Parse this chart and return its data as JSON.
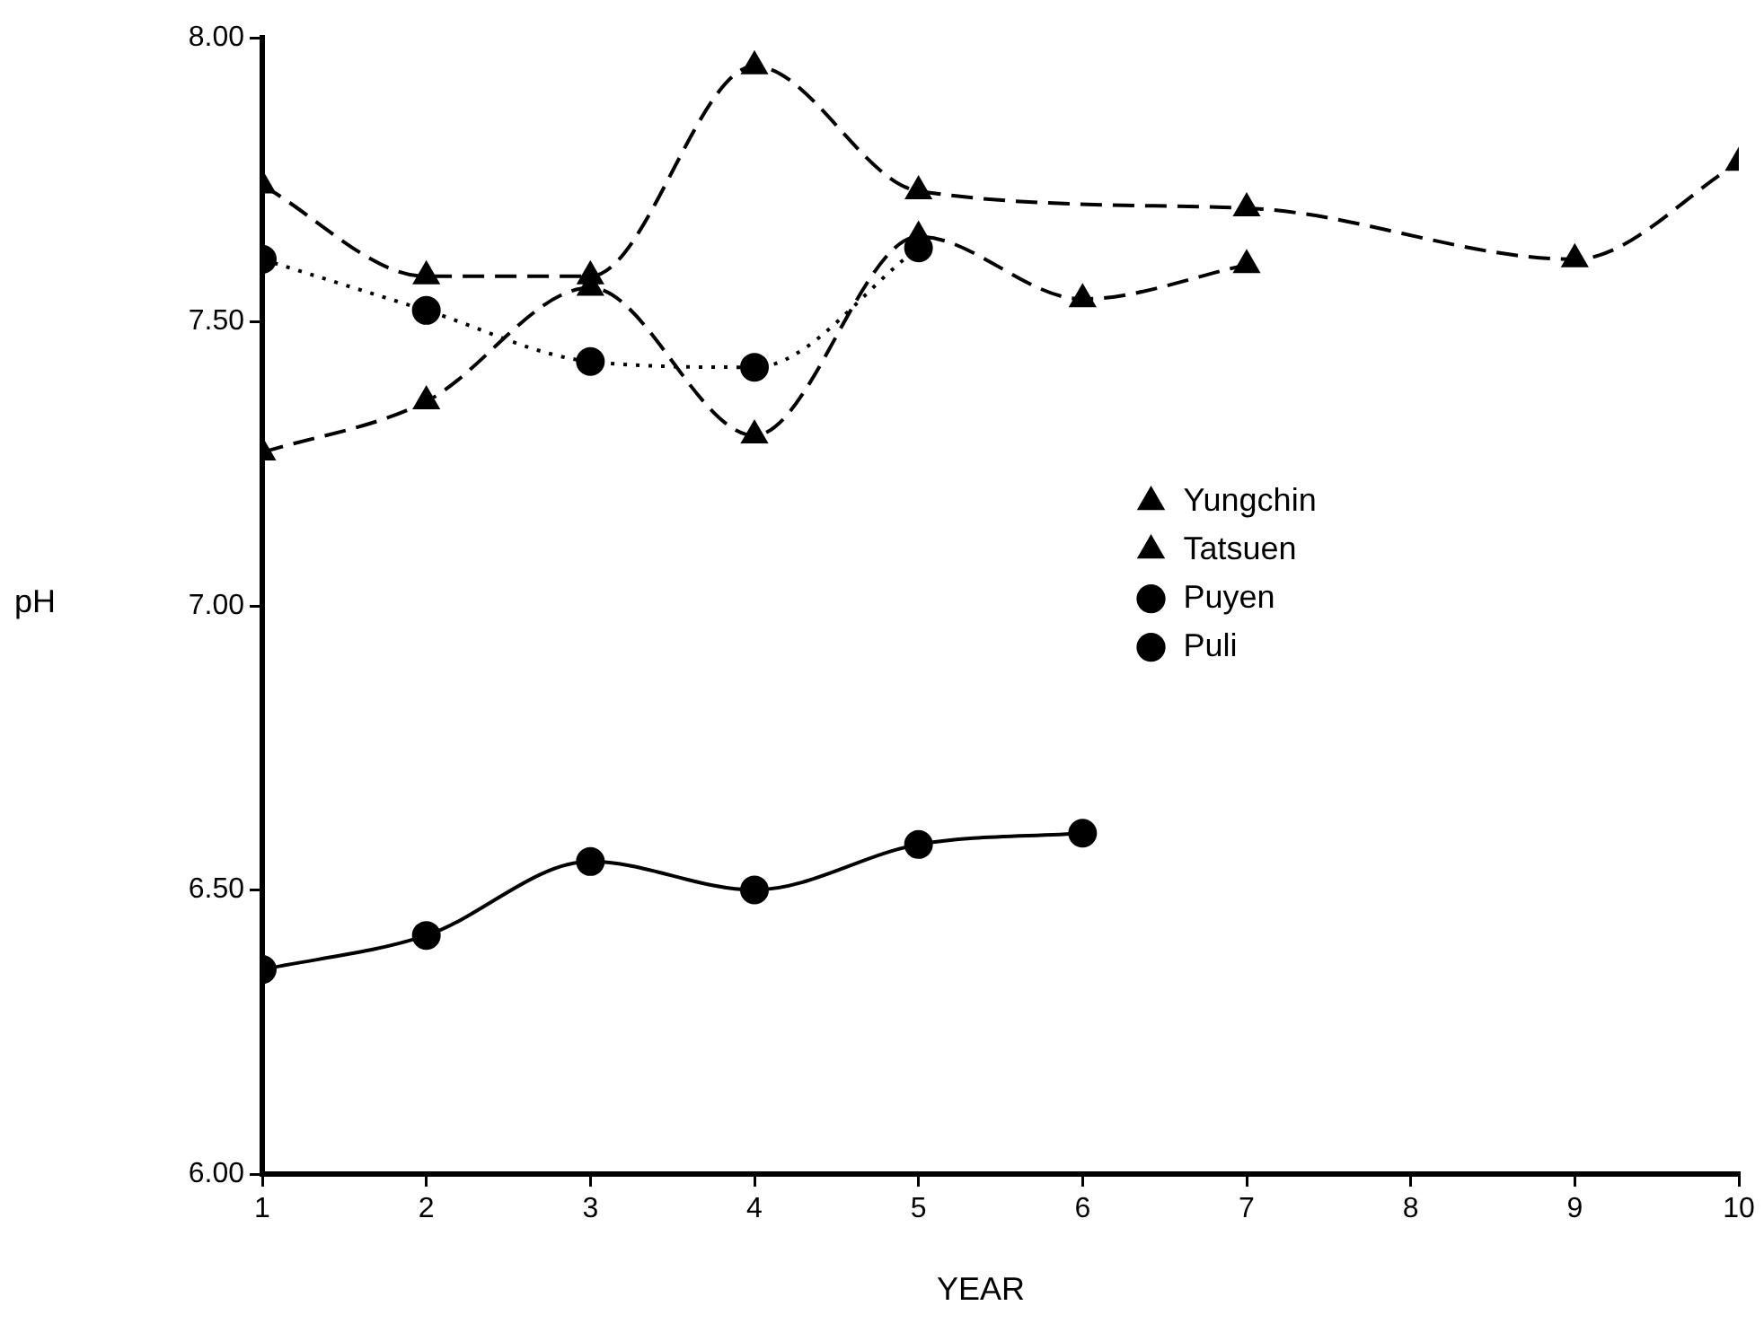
{
  "chart_data": {
    "type": "line",
    "xlabel": "YEAR",
    "ylabel": "pH",
    "xlim": [
      1,
      10
    ],
    "xticks": [
      1,
      2,
      3,
      4,
      5,
      6,
      7,
      8,
      9,
      10
    ],
    "ylim": [
      6,
      8
    ],
    "yticks": [
      {
        "value": 6,
        "label": "6.00"
      },
      {
        "value": 6.5,
        "label": "6.50"
      },
      {
        "value": 7,
        "label": "7.00"
      },
      {
        "value": 7.5,
        "label": "7.50"
      },
      {
        "value": 8,
        "label": "8.00"
      }
    ],
    "grid": false,
    "legend": "right",
    "series": [
      {
        "name": "Puli",
        "color": "#000000",
        "marker": "circle",
        "line_style": "solid",
        "x": [
          1,
          2,
          3,
          4,
          5,
          6
        ],
        "values": [
          6.36,
          6.42,
          6.55,
          6.5,
          6.58,
          6.6
        ]
      },
      {
        "name": "Puyen",
        "color": "#000000",
        "marker": "circle",
        "line_style": "dotted",
        "x": [
          1,
          2,
          3,
          4,
          5
        ],
        "values": [
          7.61,
          7.52,
          7.43,
          7.42,
          7.63
        ]
      },
      {
        "name": "Tatsuen",
        "color": "#000000",
        "marker": "triangle",
        "line_style": "dashed",
        "x": [
          1,
          2,
          3,
          4,
          5,
          6,
          7
        ],
        "values": [
          7.27,
          7.36,
          7.56,
          7.3,
          7.65,
          7.54,
          7.6
        ]
      },
      {
        "name": "Yungchin",
        "color": "#000000",
        "marker": "triangle",
        "line_style": "dashed",
        "x": [
          1,
          2,
          3,
          4,
          5,
          7,
          9,
          10
        ],
        "values": [
          7.74,
          7.58,
          7.58,
          7.95,
          7.73,
          7.7,
          7.61,
          7.78
        ]
      }
    ]
  }
}
